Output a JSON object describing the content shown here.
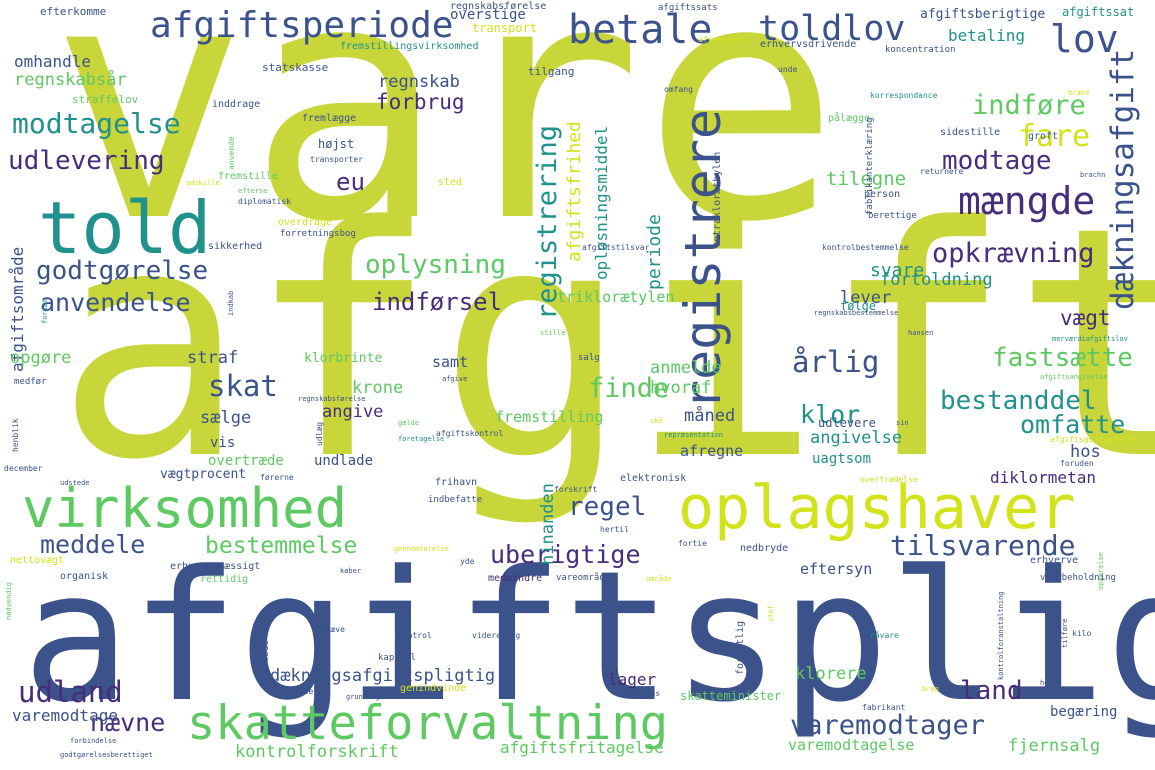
{
  "palette": {
    "lime": "#c8d63a",
    "green": "#5ec962",
    "teal": "#21918c",
    "blue": "#3b528b",
    "purple": "#472d7b",
    "yellow": "#d2e21b"
  },
  "words": [
    {
      "text": "vare",
      "color": "lime"
    },
    {
      "text": "afgift",
      "color": "lime"
    },
    {
      "text": "afgiftspligtig",
      "color": "blue"
    },
    {
      "text": "told",
      "color": "teal"
    },
    {
      "text": "oplagshaver",
      "color": "yellow"
    },
    {
      "text": "virksomhed",
      "color": "green"
    },
    {
      "text": "skatteforvaltning",
      "color": "green"
    },
    {
      "text": "registrere",
      "color": "blue"
    },
    {
      "text": "afgiftsperiode",
      "color": "blue"
    },
    {
      "text": "betale",
      "color": "blue"
    },
    {
      "text": "toldlov",
      "color": "blue"
    },
    {
      "text": "lov",
      "color": "blue"
    },
    {
      "text": "mængde",
      "color": "purple"
    },
    {
      "text": "dækningsafgift",
      "color": "blue"
    },
    {
      "text": "fare",
      "color": "yellow"
    },
    {
      "text": "indføre",
      "color": "green"
    },
    {
      "text": "modtagelse",
      "color": "teal"
    },
    {
      "text": "udlevering",
      "color": "purple"
    },
    {
      "text": "godtgørelse",
      "color": "blue"
    },
    {
      "text": "opkrævning",
      "color": "purple"
    },
    {
      "text": "oplysning",
      "color": "green"
    },
    {
      "text": "indførsel",
      "color": "purple"
    },
    {
      "text": "anvendelse",
      "color": "blue"
    },
    {
      "text": "registrering",
      "color": "teal"
    },
    {
      "text": "skat",
      "color": "blue"
    },
    {
      "text": "finde",
      "color": "green"
    },
    {
      "text": "regel",
      "color": "blue"
    },
    {
      "text": "udland",
      "color": "purple"
    },
    {
      "text": "tilsvarende",
      "color": "blue"
    },
    {
      "text": "bestemmelse",
      "color": "green"
    },
    {
      "text": "meddele",
      "color": "blue"
    },
    {
      "text": "uberigtige",
      "color": "purple"
    },
    {
      "text": "varemodtager",
      "color": "blue"
    },
    {
      "text": "land",
      "color": "purple"
    },
    {
      "text": "nævne",
      "color": "purple"
    },
    {
      "text": "årlig",
      "color": "blue"
    },
    {
      "text": "fastsætte",
      "color": "green"
    },
    {
      "text": "bestanddel",
      "color": "teal"
    },
    {
      "text": "omfatte",
      "color": "teal"
    },
    {
      "text": "klor",
      "color": "teal"
    },
    {
      "text": "modtage",
      "color": "purple"
    },
    {
      "text": "eu",
      "color": "purple"
    },
    {
      "text": "betaling",
      "color": "teal"
    },
    {
      "text": "regnskabsår",
      "color": "green"
    },
    {
      "text": "omhandle",
      "color": "blue"
    },
    {
      "text": "regnskab",
      "color": "blue"
    },
    {
      "text": "forbrug",
      "color": "purple"
    },
    {
      "text": "afgiftsfrihed",
      "color": "yellow"
    },
    {
      "text": "periode",
      "color": "teal"
    },
    {
      "text": "opløsningsmiddel",
      "color": "teal"
    },
    {
      "text": "tilegne",
      "color": "green"
    },
    {
      "text": "svare",
      "color": "teal"
    },
    {
      "text": "fortoldning",
      "color": "teal"
    },
    {
      "text": "lever",
      "color": "blue"
    },
    {
      "text": "vægt",
      "color": "purple"
    },
    {
      "text": "følge",
      "color": "teal"
    },
    {
      "text": "triklorætylen",
      "color": "green"
    },
    {
      "text": "afgiftsområde",
      "color": "blue"
    },
    {
      "text": "opgøre",
      "color": "green"
    },
    {
      "text": "straf",
      "color": "blue"
    },
    {
      "text": "samt",
      "color": "blue"
    },
    {
      "text": "klorbrinte",
      "color": "green"
    },
    {
      "text": "anmelde",
      "color": "green"
    },
    {
      "text": "krone",
      "color": "green"
    },
    {
      "text": "hvoraf",
      "color": "green"
    },
    {
      "text": "måned",
      "color": "blue"
    },
    {
      "text": "sælge",
      "color": "blue"
    },
    {
      "text": "angive",
      "color": "purple"
    },
    {
      "text": "fremstilling",
      "color": "green"
    },
    {
      "text": "angivelse",
      "color": "teal"
    },
    {
      "text": "afregne",
      "color": "blue"
    },
    {
      "text": "udlevere",
      "color": "blue"
    },
    {
      "text": "hos",
      "color": "blue"
    },
    {
      "text": "uagtsom",
      "color": "teal"
    },
    {
      "text": "diklormetan",
      "color": "purple"
    },
    {
      "text": "vis",
      "color": "blue"
    },
    {
      "text": "overtræde",
      "color": "green"
    },
    {
      "text": "undlade",
      "color": "blue"
    },
    {
      "text": "vægtprocent",
      "color": "blue"
    },
    {
      "text": "hinanden",
      "color": "teal"
    },
    {
      "text": "eftersyn",
      "color": "blue"
    },
    {
      "text": "dækningsafgiftspligtig",
      "color": "blue"
    },
    {
      "text": "klorere",
      "color": "green"
    },
    {
      "text": "lager",
      "color": "purple"
    },
    {
      "text": "varemodtage",
      "color": "blue"
    },
    {
      "text": "begæring",
      "color": "blue"
    },
    {
      "text": "kontrolforskrift",
      "color": "green"
    },
    {
      "text": "afgiftsfritagelse",
      "color": "green"
    },
    {
      "text": "varemodtagelse",
      "color": "green"
    },
    {
      "text": "fjernsalg",
      "color": "green"
    },
    {
      "text": "efterkomme",
      "color": "blue"
    },
    {
      "text": "regnskabsførelse",
      "color": "blue"
    },
    {
      "text": "overstige",
      "color": "blue"
    },
    {
      "text": "transport",
      "color": "yellow"
    },
    {
      "text": "afgiftsberigtige",
      "color": "blue"
    },
    {
      "text": "afgiftssat",
      "color": "teal"
    },
    {
      "text": "afgiftssats",
      "color": "blue"
    },
    {
      "text": "fremstillingsvirksomhed",
      "color": "teal"
    },
    {
      "text": "afsendelse",
      "color": "yellow"
    },
    {
      "text": "erhvervsdrivende",
      "color": "blue"
    },
    {
      "text": "koncentration",
      "color": "blue"
    },
    {
      "text": "statskasse",
      "color": "blue"
    },
    {
      "text": "inddrage",
      "color": "blue"
    },
    {
      "text": "tilgang",
      "color": "blue"
    },
    {
      "text": "straffelov",
      "color": "green"
    },
    {
      "text": "omfang",
      "color": "blue"
    },
    {
      "text": "unde",
      "color": "blue"
    },
    {
      "text": "brand",
      "color": "yellow"
    },
    {
      "text": "fremlægge",
      "color": "blue"
    },
    {
      "text": "korrespondance",
      "color": "teal"
    },
    {
      "text": "pålægge",
      "color": "green"
    },
    {
      "text": "højst",
      "color": "blue"
    },
    {
      "text": "anvende",
      "color": "green"
    },
    {
      "text": "tetrakloræthylen",
      "color": "blue"
    },
    {
      "text": "fabrikanterklæring",
      "color": "blue"
    },
    {
      "text": "sidestille",
      "color": "blue"
    },
    {
      "text": "groft",
      "color": "blue"
    },
    {
      "text": "transporter",
      "color": "blue"
    },
    {
      "text": "returnere",
      "color": "blue"
    },
    {
      "text": "brachn",
      "color": "blue"
    },
    {
      "text": "fremstille",
      "color": "green"
    },
    {
      "text": "adskille",
      "color": "yellow"
    },
    {
      "text": "sted",
      "color": "yellow"
    },
    {
      "text": "person",
      "color": "blue"
    },
    {
      "text": "diplomatisk",
      "color": "blue"
    },
    {
      "text": "efterse",
      "color": "green"
    },
    {
      "text": "berettige",
      "color": "blue"
    },
    {
      "text": "overdrage",
      "color": "yellow"
    },
    {
      "text": "forretningsbog",
      "color": "blue"
    },
    {
      "text": "sikkerhed",
      "color": "blue"
    },
    {
      "text": "afgiftstilsvar",
      "color": "blue"
    },
    {
      "text": "kontrolbestemmelse",
      "color": "blue"
    },
    {
      "text": "indkab",
      "color": "blue"
    },
    {
      "text": "regnskabsbestemmelse",
      "color": "blue"
    },
    {
      "text": "forsæt",
      "color": "teal"
    },
    {
      "text": "hansen",
      "color": "blue"
    },
    {
      "text": "stille",
      "color": "green"
    },
    {
      "text": "merværdiafgiftslov",
      "color": "teal"
    },
    {
      "text": "medfør",
      "color": "blue"
    },
    {
      "text": "afgive",
      "color": "blue"
    },
    {
      "text": "salg",
      "color": "blue"
    },
    {
      "text": "afgiftsangivelse",
      "color": "green"
    },
    {
      "text": "regnskabsførelse",
      "color": "blue"
    },
    {
      "text": "gælde",
      "color": "green"
    },
    {
      "text": "ske",
      "color": "yellow"
    },
    {
      "text": "repræsentation",
      "color": "teal"
    },
    {
      "text": "sin",
      "color": "blue"
    },
    {
      "text": "afgiftskontrol",
      "color": "blue"
    },
    {
      "text": "afgiftsgodtgørelse",
      "color": "yellow"
    },
    {
      "text": "foruden",
      "color": "blue"
    },
    {
      "text": "henblik",
      "color": "blue"
    },
    {
      "text": "udlæg",
      "color": "blue"
    },
    {
      "text": "foretagelse",
      "color": "teal"
    },
    {
      "text": "december",
      "color": "blue"
    },
    {
      "text": "udstede",
      "color": "blue"
    },
    {
      "text": "førerne",
      "color": "blue"
    },
    {
      "text": "frihavn",
      "color": "blue"
    },
    {
      "text": "elektronisk",
      "color": "blue"
    },
    {
      "text": "overtrædelse",
      "color": "yellow"
    },
    {
      "text": "indbefatte",
      "color": "blue"
    },
    {
      "text": "forskrift",
      "color": "blue"
    },
    {
      "text": "hertil",
      "color": "blue"
    },
    {
      "text": "fortie",
      "color": "blue"
    },
    {
      "text": "nettovægt",
      "color": "yellow"
    },
    {
      "text": "gennemførelse",
      "color": "yellow"
    },
    {
      "text": "yde",
      "color": "blue"
    },
    {
      "text": "erhvervsmæssigt",
      "color": "blue"
    },
    {
      "text": "rettidig",
      "color": "green"
    },
    {
      "text": "nedbryde",
      "color": "blue"
    },
    {
      "text": "erhverve",
      "color": "blue"
    },
    {
      "text": "opgørelse",
      "color": "green"
    },
    {
      "text": "nødvendig",
      "color": "green"
    },
    {
      "text": "organisk",
      "color": "blue"
    },
    {
      "text": "køber",
      "color": "blue"
    },
    {
      "text": "medmindre",
      "color": "purple"
    },
    {
      "text": "vareområde",
      "color": "blue"
    },
    {
      "text": "område",
      "color": "yellow"
    },
    {
      "text": "varebeholdning",
      "color": "blue"
    },
    {
      "text": "ophæve",
      "color": "blue"
    },
    {
      "text": "kontrol",
      "color": "blue"
    },
    {
      "text": "videresalg",
      "color": "blue"
    },
    {
      "text": "adgang",
      "color": "blue"
    },
    {
      "text": "forsætlig",
      "color": "blue"
    },
    {
      "text": "stof",
      "color": "yellow"
    },
    {
      "text": "råvare",
      "color": "teal"
    },
    {
      "text": "bøde",
      "color": "blue"
    },
    {
      "text": "kapitel",
      "color": "blue"
    },
    {
      "text": "kilo",
      "color": "blue"
    },
    {
      "text": "tilføre",
      "color": "blue"
    },
    {
      "text": "kontrolforanstaltning",
      "color": "blue"
    },
    {
      "text": "genindvinde",
      "color": "yellow"
    },
    {
      "text": "claus",
      "color": "blue"
    },
    {
      "text": "skatteminister",
      "color": "green"
    },
    {
      "text": "herom",
      "color": "blue"
    },
    {
      "text": "indbetale",
      "color": "blue"
    },
    {
      "text": "grundlag",
      "color": "blue"
    },
    {
      "text": "fabrikant",
      "color": "blue"
    },
    {
      "text": "brug",
      "color": "yellow"
    },
    {
      "text": "forbindelse",
      "color": "blue"
    },
    {
      "text": "godtgørelsesberettiget",
      "color": "blue"
    }
  ]
}
